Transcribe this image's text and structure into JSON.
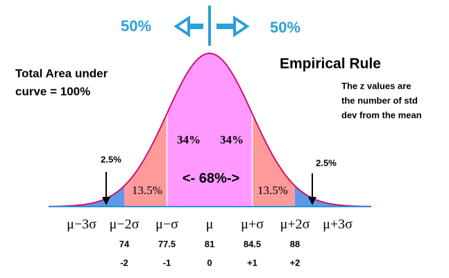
{
  "top": {
    "left_percent": "50%",
    "right_percent": "50%"
  },
  "total_area": [
    "Total Area under",
    "curve = 100%"
  ],
  "title": "Empirical Rule",
  "note": [
    "The z values are",
    "the number of std",
    "dev from the mean"
  ],
  "regions": {
    "left_tail": "2.5%",
    "right_tail": "2.5%",
    "left_mid": "13.5%",
    "right_mid": "13.5%",
    "left_center": "34%",
    "right_center": "34%",
    "center": "<- 68%->"
  },
  "axis": {
    "labels": [
      "μ−3σ",
      "μ−2σ",
      "μ−σ",
      "μ",
      "μ+σ",
      "μ+2σ",
      "μ+3σ"
    ],
    "values": [
      "74",
      "77.5",
      "81",
      "84.5",
      "88"
    ],
    "z": [
      "-2",
      "-1",
      "0",
      "+1",
      "+2"
    ]
  }
}
